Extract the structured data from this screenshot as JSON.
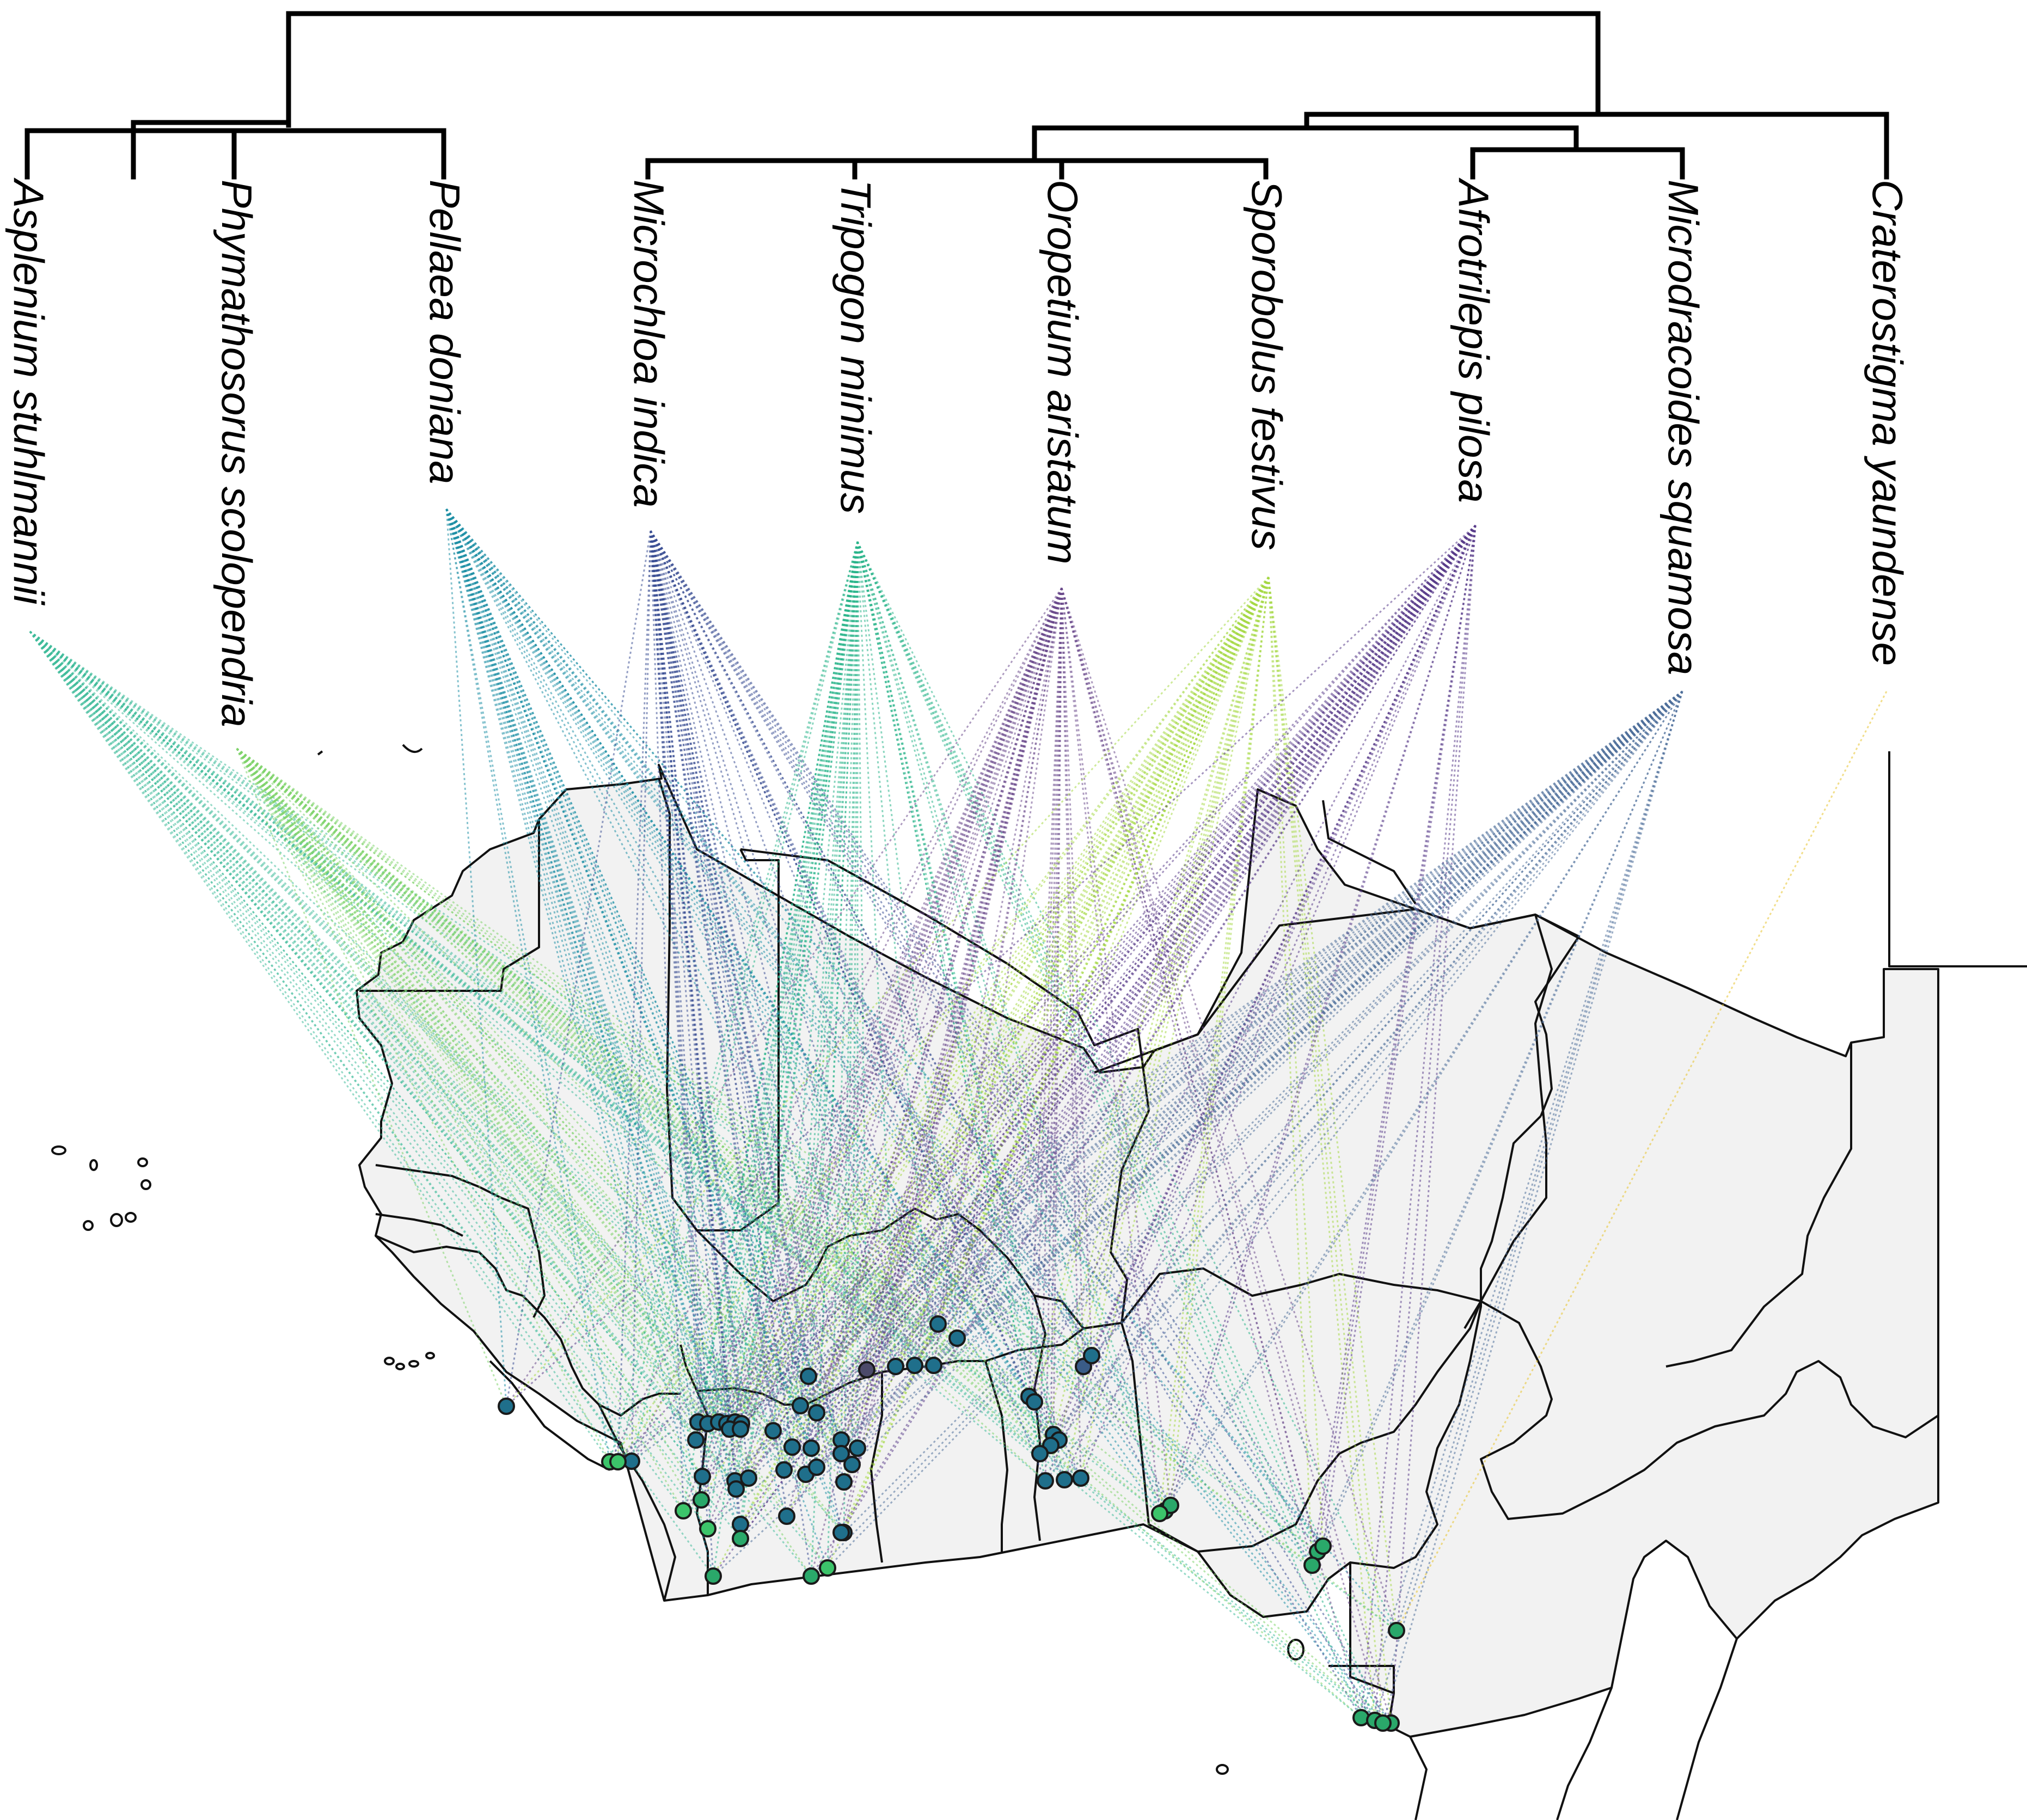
{
  "taxa": [
    {
      "name": "Asplenium stuhlmannii",
      "color": "#3fbc9a"
    },
    {
      "name": "Phymathosorus scolopendria",
      "color": "#7fd36b"
    },
    {
      "name": "Pellaea doniana",
      "color": "#1f8fa6"
    },
    {
      "name": "Microchloa indica",
      "color": "#3b4f94"
    },
    {
      "name": "Tripogon minimus",
      "color": "#2ab58a"
    },
    {
      "name": "Oropetium aristatum",
      "color": "#6b4a8c"
    },
    {
      "name": "Sporobolus festivus",
      "color": "#a6d945"
    },
    {
      "name": "Afrotrilepis pilosa",
      "color": "#5a3d8a"
    },
    {
      "name": "Microdracoides squamosa",
      "color": "#4f6f9a"
    },
    {
      "name": "Craterostigma yaundense",
      "color": "#e8c22a"
    }
  ],
  "colors": {
    "land": "#f2f2f2",
    "border": "#111111",
    "tree": "#000000"
  }
}
